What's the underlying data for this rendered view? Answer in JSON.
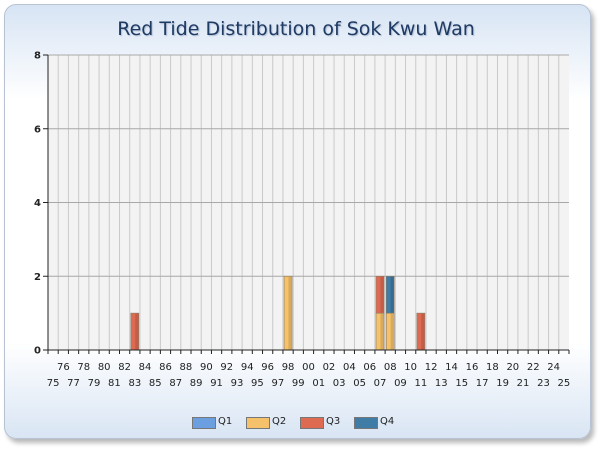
{
  "chart_data": {
    "type": "bar",
    "stacked": true,
    "title": "Red Tide Distribution of Sok Kwu Wan",
    "xlabel": "",
    "ylabel": "",
    "ylim": [
      0,
      8
    ],
    "yticks": [
      0,
      2,
      4,
      6,
      8
    ],
    "grid": true,
    "legend_position": "bottom",
    "categories": [
      "75",
      "76",
      "77",
      "78",
      "79",
      "80",
      "81",
      "82",
      "83",
      "84",
      "85",
      "86",
      "87",
      "88",
      "89",
      "90",
      "91",
      "92",
      "93",
      "94",
      "95",
      "96",
      "97",
      "98",
      "99",
      "00",
      "01",
      "02",
      "03",
      "04",
      "05",
      "06",
      "07",
      "08",
      "09",
      "10",
      "11",
      "12",
      "13",
      "14",
      "15",
      "16",
      "17",
      "18",
      "19",
      "20",
      "21",
      "22",
      "23",
      "24",
      "25"
    ],
    "series": [
      {
        "name": "Q1",
        "color": "#6b9fe0",
        "values": [
          0,
          0,
          0,
          0,
          0,
          0,
          0,
          0,
          0,
          0,
          0,
          0,
          0,
          0,
          0,
          0,
          0,
          0,
          0,
          0,
          0,
          0,
          0,
          0,
          0,
          0,
          0,
          0,
          0,
          0,
          0,
          0,
          0,
          0,
          0,
          0,
          0,
          0,
          0,
          0,
          0,
          0,
          0,
          0,
          0,
          0,
          0,
          0,
          0,
          0,
          0
        ]
      },
      {
        "name": "Q2",
        "color": "#f5c26b",
        "values": [
          0,
          0,
          0,
          0,
          0,
          0,
          0,
          0,
          0,
          0,
          0,
          0,
          0,
          0,
          0,
          0,
          0,
          0,
          0,
          0,
          0,
          0,
          0,
          2,
          0,
          0,
          0,
          0,
          0,
          0,
          0,
          0,
          1,
          1,
          0,
          0,
          0,
          0,
          0,
          0,
          0,
          0,
          0,
          0,
          0,
          0,
          0,
          0,
          0,
          0,
          0
        ]
      },
      {
        "name": "Q3",
        "color": "#df6a52",
        "values": [
          0,
          0,
          0,
          0,
          0,
          0,
          0,
          0,
          1,
          0,
          0,
          0,
          0,
          0,
          0,
          0,
          0,
          0,
          0,
          0,
          0,
          0,
          0,
          0,
          0,
          0,
          0,
          0,
          0,
          0,
          0,
          0,
          1,
          0,
          0,
          0,
          1,
          0,
          0,
          0,
          0,
          0,
          0,
          0,
          0,
          0,
          0,
          0,
          0,
          0,
          0
        ]
      },
      {
        "name": "Q4",
        "color": "#3f7ca6",
        "values": [
          0,
          0,
          0,
          0,
          0,
          0,
          0,
          0,
          0,
          0,
          0,
          0,
          0,
          0,
          0,
          0,
          0,
          0,
          0,
          0,
          0,
          0,
          0,
          0,
          0,
          0,
          0,
          0,
          0,
          0,
          0,
          0,
          0,
          1,
          0,
          0,
          0,
          0,
          0,
          0,
          0,
          0,
          0,
          0,
          0,
          0,
          0,
          0,
          0,
          0,
          0
        ]
      }
    ]
  }
}
